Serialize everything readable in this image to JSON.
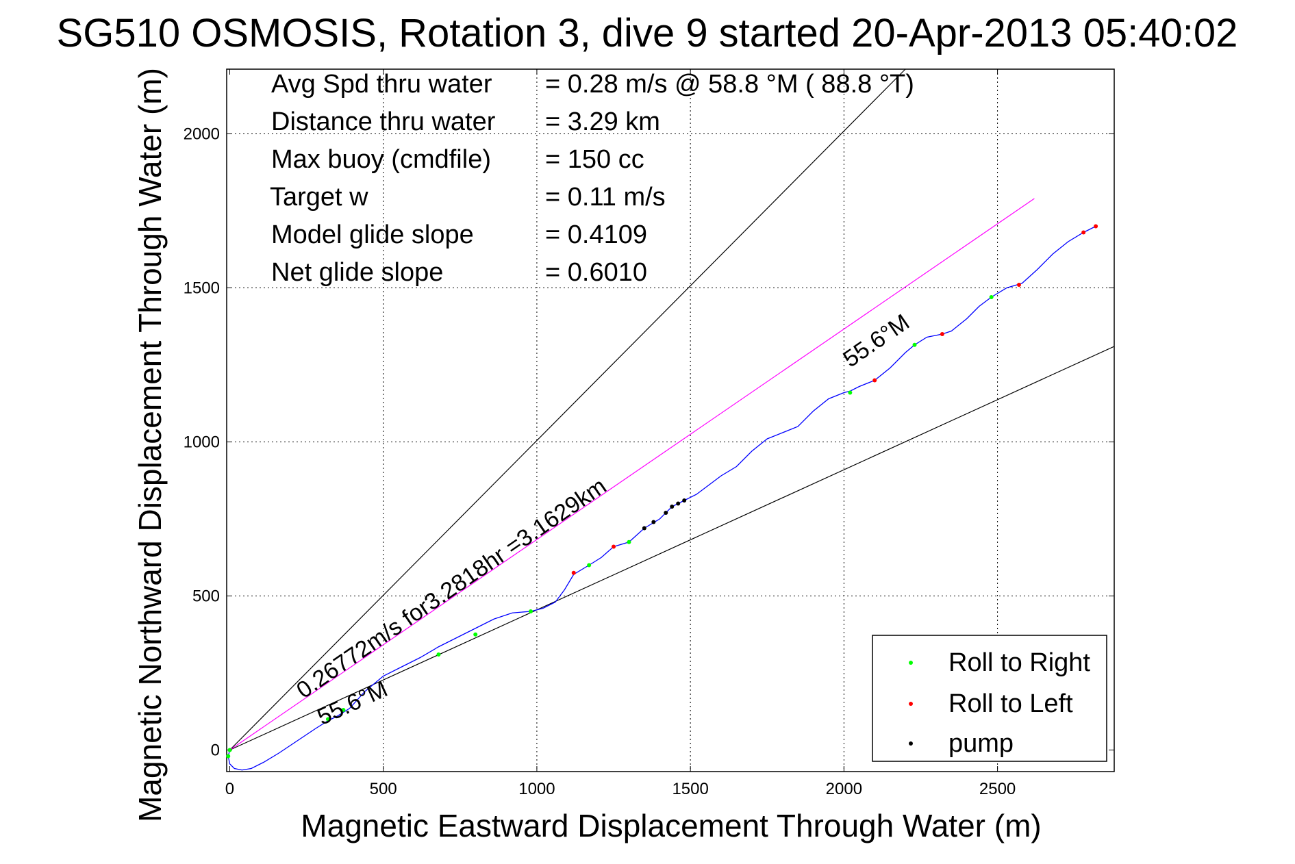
{
  "chart_data": {
    "type": "line",
    "title": "SG510 OSMOSIS, Rotation 3, dive 9 started 20-Apr-2013 05:40:02",
    "xlabel": "Magnetic Eastward Displacement Through Water (m)",
    "ylabel": "Magnetic Northward Displacement Through Water (m)",
    "xlim": [
      -10,
      2880
    ],
    "ylim": [
      -70,
      2210
    ],
    "x_ticks": [
      0,
      500,
      1000,
      1500,
      2000,
      2500
    ],
    "y_ticks": [
      0,
      500,
      1000,
      1500,
      2000
    ],
    "grid": true,
    "legend_position": "bottom-right",
    "summary": [
      {
        "label": "Avg Spd thru water",
        "value": "=  0.28 m/s @  58.8 °M ( 88.8 °T)"
      },
      {
        "label": "Distance thru water",
        "value": "=  3.29 km"
      },
      {
        "label": "Max buoy (cmdfile)",
        "value": "= 150 cc"
      },
      {
        "label": "Target w",
        "value": "= 0.11 m/s"
      },
      {
        "label": "Model glide slope",
        "value": "= 0.4109"
      },
      {
        "label": "Net glide slope",
        "value": "= 0.6010"
      }
    ],
    "annotations": {
      "velocity_label": "0.26772m/s for3.2818hr =3.1629km",
      "heading_upper": "55.6°M",
      "heading_lower": "55.6°M"
    },
    "reference_lines": [
      {
        "name": "upper bound",
        "x": [
          0,
          2200
        ],
        "y": [
          0,
          2210
        ],
        "color": "#000000"
      },
      {
        "name": "lower bound",
        "x": [
          0,
          2880
        ],
        "y": [
          0,
          1310
        ],
        "color": "#000000"
      },
      {
        "name": "net track",
        "x": [
          0,
          2620
        ],
        "y": [
          0,
          1790
        ],
        "color": "#ff00ff"
      }
    ],
    "series": [
      {
        "name": "track",
        "color": "#0000ff",
        "x": [
          0,
          -5,
          0,
          15,
          40,
          70,
          110,
          160,
          220,
          280,
          320,
          350,
          390,
          440,
          500,
          560,
          620,
          680,
          740,
          800,
          860,
          920,
          980,
          1020,
          1060,
          1090,
          1120,
          1170,
          1210,
          1250,
          1300,
          1350,
          1400,
          1440,
          1480,
          1520,
          1560,
          1600,
          1650,
          1700,
          1750,
          1800,
          1850,
          1900,
          1950,
          2000,
          2020,
          2050,
          2100,
          2150,
          2200,
          2230,
          2270,
          2320,
          2350,
          2400,
          2440,
          2480,
          2530,
          2580,
          2630,
          2680,
          2730,
          2780,
          2820
        ],
        "y": [
          0,
          -20,
          -45,
          -60,
          -65,
          -60,
          -40,
          -10,
          30,
          70,
          95,
          110,
          135,
          190,
          240,
          270,
          300,
          335,
          365,
          395,
          425,
          445,
          450,
          460,
          480,
          520,
          570,
          600,
          625,
          660,
          675,
          720,
          750,
          790,
          810,
          830,
          860,
          890,
          920,
          970,
          1010,
          1030,
          1050,
          1100,
          1140,
          1160,
          1165,
          1180,
          1200,
          1240,
          1290,
          1315,
          1340,
          1350,
          1360,
          1400,
          1440,
          1470,
          1500,
          1515,
          1560,
          1610,
          1650,
          1680,
          1700
        ]
      },
      {
        "name": "Roll to Right",
        "color": "#00ff00",
        "x": [
          0,
          -5,
          320,
          370,
          680,
          800,
          980,
          1170,
          1300,
          2020,
          2230,
          2480
        ],
        "y": [
          0,
          -20,
          100,
          130,
          310,
          375,
          450,
          600,
          675,
          1160,
          1315,
          1470
        ]
      },
      {
        "name": "Roll to Left",
        "color": "#ff0000",
        "x": [
          1120,
          1250,
          2100,
          2320,
          2570,
          2780,
          2820
        ],
        "y": [
          575,
          660,
          1200,
          1350,
          1510,
          1680,
          1700
        ]
      },
      {
        "name": "pump",
        "color": "#000000",
        "x": [
          1350,
          1380,
          1420,
          1440,
          1460,
          1480
        ],
        "y": [
          720,
          740,
          770,
          790,
          800,
          810
        ]
      }
    ]
  }
}
